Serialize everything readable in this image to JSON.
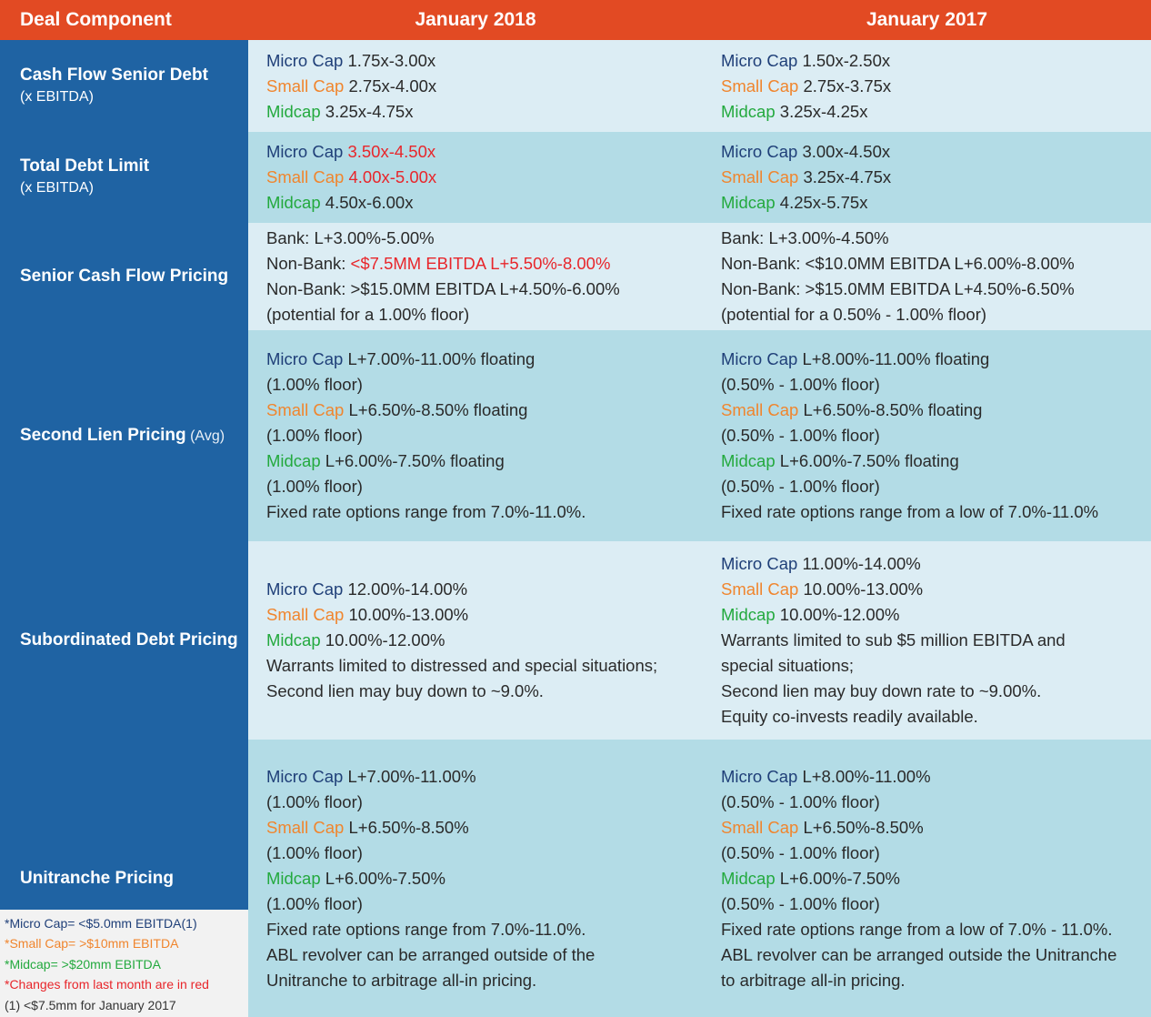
{
  "header": {
    "col1": "Deal Component",
    "col2": "January 2018",
    "col3": "January 2017"
  },
  "labels": {
    "micro": "Micro Cap",
    "small": "Small Cap",
    "mid": "Midcap"
  },
  "rows": {
    "cfsd": {
      "label": "Cash Flow Senior Debt",
      "sub": "(x EBITDA)",
      "y2018": {
        "micro": " 1.75x-3.00x",
        "small": " 2.75x-4.00x",
        "mid": " 3.25x-4.75x"
      },
      "y2017": {
        "micro": " 1.50x-2.50x",
        "small": "  2.75x-3.75x",
        "mid": " 3.25x-4.25x"
      }
    },
    "tdl": {
      "label": "Total Debt Limit",
      "sub": "(x EBITDA)",
      "y2018": {
        "micro": " 3.50x-4.50x",
        "small": " 4.00x-5.00x",
        "mid": " 4.50x-6.00x"
      },
      "y2017": {
        "micro": " 3.00x-4.50x",
        "small": " 3.25x-4.75x",
        "mid": " 4.25x-5.75x"
      }
    },
    "scfp": {
      "label": "Senior Cash Flow Pricing",
      "y2018": {
        "l1": "Bank: L+3.00%-5.00%",
        "l2a": "Non-Bank: ",
        "l2b": "<$7.5MM EBITDA L+5.50%-8.00%",
        "l3": "Non-Bank: >$15.0MM EBITDA L+4.50%-6.00%",
        "l4": "(potential for a 1.00% floor)"
      },
      "y2017": {
        "l1": "Bank: L+3.00%-4.50%",
        "l2": "Non-Bank: <$10.0MM EBITDA L+6.00%-8.00%",
        "l3": "Non-Bank: >$15.0MM EBITDA L+4.50%-6.50%",
        "l4": "(potential for a 0.50% - 1.00% floor)"
      }
    },
    "slp": {
      "label": "Second Lien Pricing",
      "avg": " (Avg)",
      "y2018": {
        "micro": " L+7.00%-11.00% floating",
        "micro_floor": "(1.00% floor)",
        "small": " L+6.50%-8.50% floating",
        "small_floor": "(1.00% floor)",
        "mid": " L+6.00%-7.50% floating",
        "mid_floor": "(1.00% floor)",
        "fixed": "Fixed rate options range from 7.0%-11.0%."
      },
      "y2017": {
        "micro": " L+8.00%-11.00% floating",
        "micro_floor": "(0.50% - 1.00% floor)",
        "small": " L+6.50%-8.50% floating",
        "small_floor": "(0.50% - 1.00% floor)",
        "mid": " L+6.00%-7.50% floating",
        "mid_floor": "(0.50% - 1.00% floor)",
        "fixed": "Fixed rate options range from a low of 7.0%-11.0%"
      }
    },
    "sdp": {
      "label": "Subordinated Debt Pricing",
      "y2018": {
        "micro": " 12.00%-14.00%",
        "small": " 10.00%-13.00%",
        "mid": " 10.00%-12.00%",
        "l4": "Warrants limited to distressed and special situations;",
        "l5": "Second lien may buy down to ~9.0%."
      },
      "y2017": {
        "micro": " 11.00%-14.00%",
        "small": " 10.00%-13.00%",
        "mid": " 10.00%-12.00%",
        "l4": "Warrants limited to sub $5 million EBITDA and",
        "l5": "special situations;",
        "l6": "Second lien may buy down rate to ~9.00%.",
        "l7": "Equity co-invests readily available."
      }
    },
    "up": {
      "label": "Unitranche Pricing",
      "y2018": {
        "micro": " L+7.00%-11.00%",
        "micro_floor": "(1.00% floor)",
        "small": " L+6.50%-8.50%",
        "small_floor": "(1.00% floor)",
        "mid": " L+6.00%-7.50%",
        "mid_floor": "(1.00% floor)",
        "fixed": "Fixed rate options range from 7.0%-11.0%.",
        "abl1": "ABL revolver can be arranged outside of the",
        "abl2": "Unitranche to arbitrage all-in pricing."
      },
      "y2017": {
        "micro": " L+8.00%-11.00%",
        "micro_floor": "(0.50% - 1.00% floor)",
        "small": " L+6.50%-8.50%",
        "small_floor": "(0.50% - 1.00% floor)",
        "mid": " L+6.00%-7.50%",
        "mid_floor": "(0.50% - 1.00% floor)",
        "fixed": "Fixed rate options range from a low of 7.0% - 11.0%.",
        "abl1": "ABL revolver can be arranged outside the Unitranche",
        "abl2": "to arbitrage all-in pricing."
      }
    }
  },
  "legend": {
    "micro": "*Micro Cap= <$5.0mm EBITDA(1)",
    "small": "*Small Cap= >$10mm EBITDA",
    "mid": "*Midcap= >$20mm EBITDA",
    "changes": "*Changes from last month are in red",
    "note": "(1) <$7.5mm for January 2017"
  },
  "colors": {
    "header": "#e24a23",
    "label_column": "#1f63a3",
    "row_light": "#dcedf4",
    "row_dark": "#b3dce6",
    "micro": "#1f3f78",
    "small": "#f0852d",
    "mid": "#23a93e",
    "changed": "#e8262b"
  }
}
